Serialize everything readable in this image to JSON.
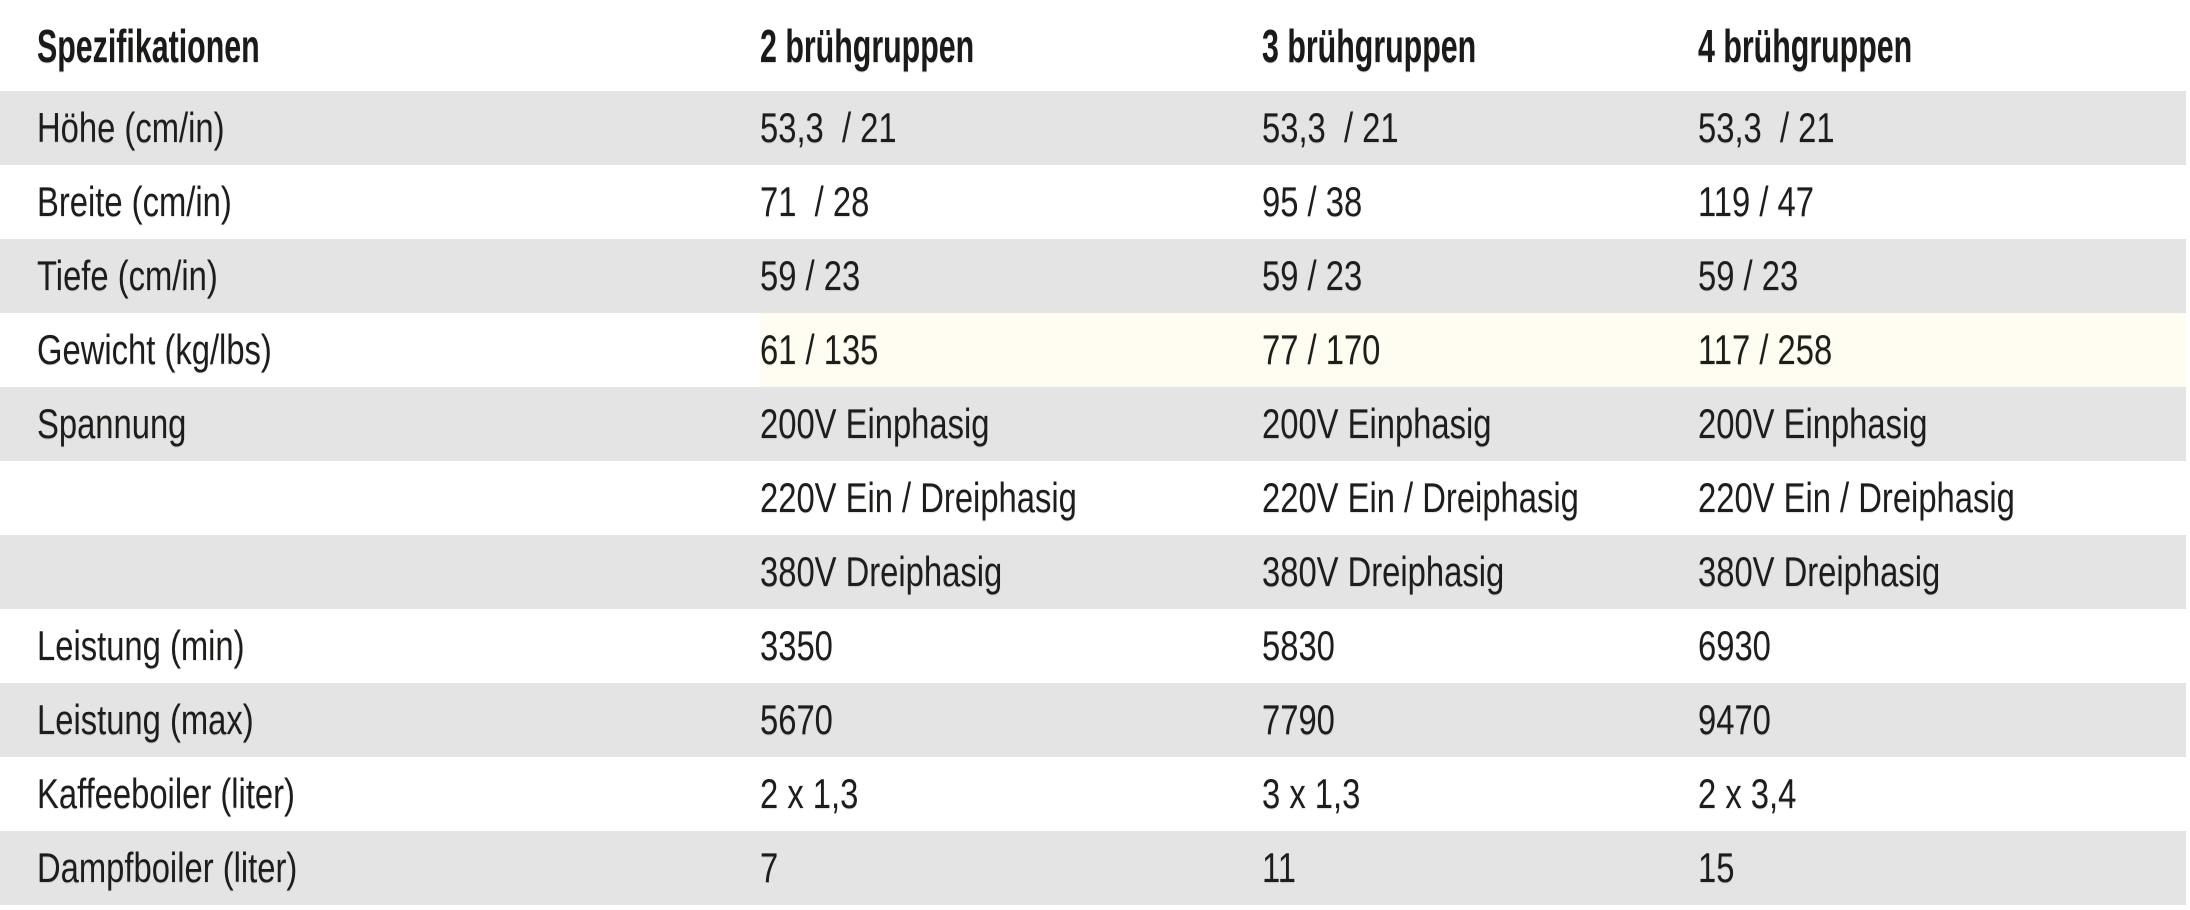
{
  "table": {
    "title": "Spezifikationen",
    "columns": [
      "2 brühgruppen",
      "3 brühgruppen",
      "4 brühgruppen"
    ],
    "rows": [
      {
        "label": "Höhe (cm/in)",
        "values": [
          "53,3  / 21",
          "53,3  / 21",
          "53,3  / 21"
        ],
        "shade": "gray"
      },
      {
        "label": "Breite (cm/in)",
        "values": [
          "71  / 28",
          "95 / 38",
          "119 / 47"
        ],
        "shade": "white"
      },
      {
        "label": "Tiefe (cm/in)",
        "values": [
          "59 / 23",
          "59 / 23",
          "59 / 23"
        ],
        "shade": "gray"
      },
      {
        "label": "Gewicht (kg/lbs)",
        "values": [
          "61 / 135",
          "77 / 170",
          "117 / 258"
        ],
        "shade": "cream"
      },
      {
        "label": "Spannung",
        "values": [
          "200V Einphasig",
          "200V Einphasig",
          "200V Einphasig"
        ],
        "shade": "gray"
      },
      {
        "label": "",
        "values": [
          "220V Ein / Dreiphasig",
          "220V Ein / Dreiphasig",
          "220V Ein / Dreiphasig"
        ],
        "shade": "white"
      },
      {
        "label": "",
        "values": [
          "380V Dreiphasig",
          "380V Dreiphasig",
          "380V Dreiphasig"
        ],
        "shade": "gray"
      },
      {
        "label": "Leistung (min)",
        "values": [
          "3350",
          "5830",
          "6930"
        ],
        "shade": "white"
      },
      {
        "label": "Leistung (max)",
        "values": [
          "5670",
          "7790",
          "9470"
        ],
        "shade": "gray"
      },
      {
        "label": "Kaffeeboiler (liter)",
        "values": [
          "2 x 1,3",
          "3 x 1,3",
          "2 x 3,4"
        ],
        "shade": "white"
      },
      {
        "label": "Dampfboiler (liter)",
        "values": [
          "7",
          "11",
          "15"
        ],
        "shade": "gray"
      }
    ],
    "colors": {
      "row_gray": "#e4e4e4",
      "row_cream": "#fffdf2",
      "text": "#1d1d1b"
    }
  }
}
